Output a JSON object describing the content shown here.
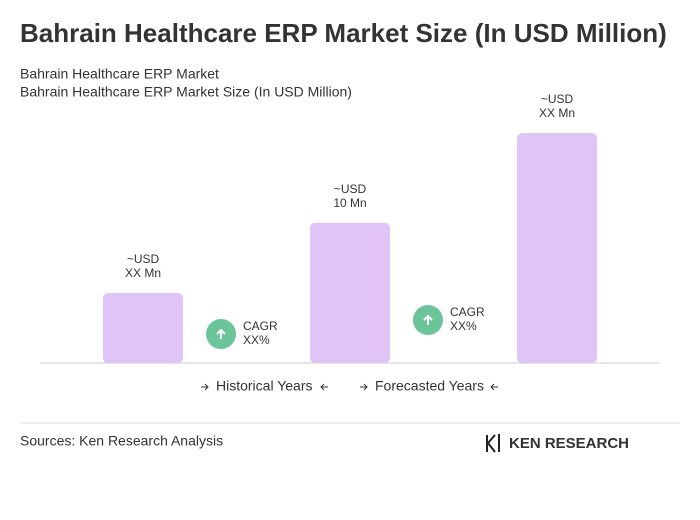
{
  "chart_data": {
    "type": "bar",
    "title": "Bahrain Healthcare ERP Market Size (In USD Million)",
    "subtitle": [
      "Bahrain Healthcare ERP Market",
      "Bahrain Healthcare ERP Market Size (In USD Million)"
    ],
    "categories": [
      null,
      null,
      null
    ],
    "values": [
      5,
      10,
      16.4
    ],
    "color": "#e0c4f7",
    "ylim": [
      0,
      16.4
    ],
    "bar_labels": [
      [
        "~USD",
        "XX Mn"
      ],
      [
        "~USD",
        "10 Mn"
      ],
      [
        "~USD",
        "XX Mn"
      ]
    ],
    "cagr_labels": [
      [
        "CAGR",
        "XX%"
      ],
      [
        "CAGR",
        "XX%"
      ]
    ],
    "cagr_color": "#6cc49a",
    "legend": [
      "Historical Years",
      "Forecasted Years"
    ]
  },
  "footer": {
    "source": "Sources: Ken Research Analysis",
    "logo": "KEN RESEARCH"
  }
}
